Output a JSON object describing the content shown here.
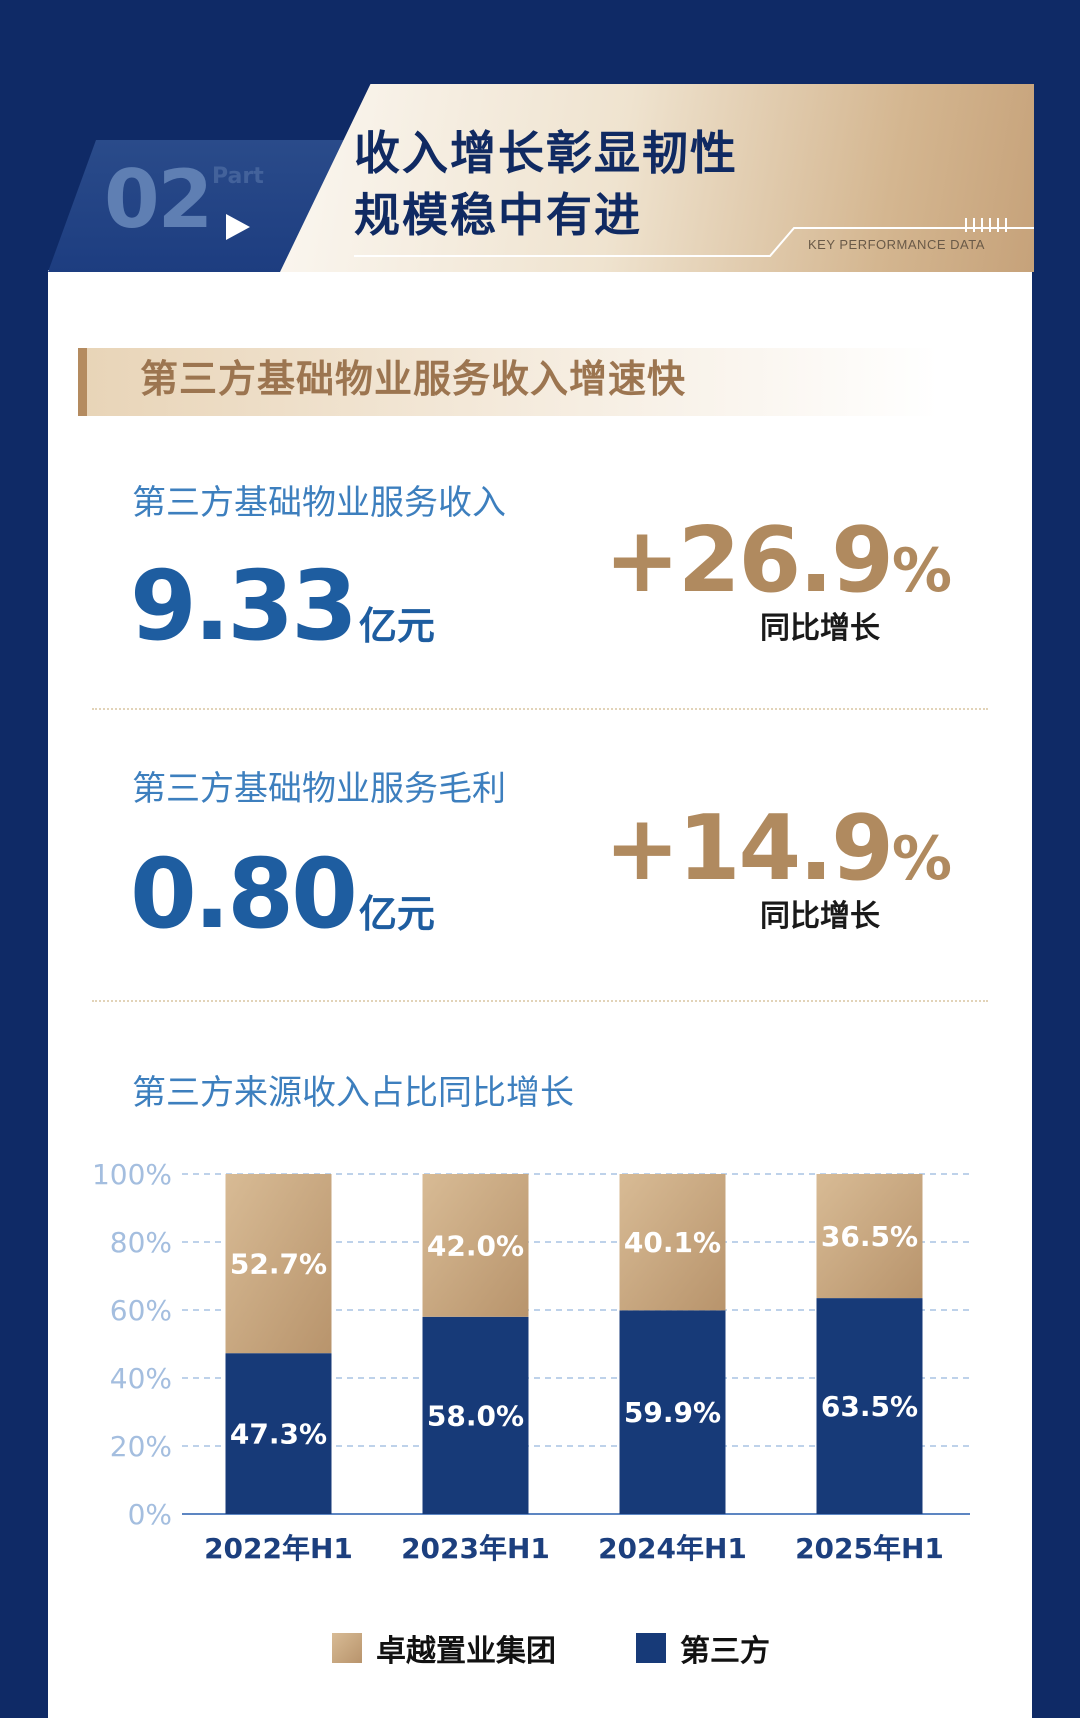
{
  "header": {
    "number": "02",
    "part": "Part",
    "title_line1": "收入增长彰显韧性",
    "title_line2": "规模稳中有进",
    "tag": "KEY PERFORMANCE DATA"
  },
  "section": {
    "title": "第三方基础物业服务收入增速快"
  },
  "metrics": [
    {
      "label": "第三方基础物业服务收入",
      "value": "9.33",
      "unit": "亿元",
      "growth": "+26.9",
      "growth_unit": "%",
      "growth_label": "同比增长"
    },
    {
      "label": "第三方基础物业服务毛利",
      "value": "0.80",
      "unit": "亿元",
      "growth": "+14.9",
      "growth_unit": "%",
      "growth_label": "同比增长"
    }
  ],
  "chart_data": {
    "type": "bar",
    "stacked": true,
    "title": "第三方来源收入占比同比增长",
    "categories": [
      "2022年H1",
      "2023年H1",
      "2024年H1",
      "2025年H1"
    ],
    "series": [
      {
        "name": "第三方",
        "values": [
          47.3,
          58.0,
          59.9,
          63.5
        ],
        "labels": [
          "47.3%",
          "58.0%",
          "59.9%",
          "63.5%"
        ]
      },
      {
        "name": "卓越置业集团",
        "values": [
          52.7,
          42.0,
          40.1,
          36.5
        ],
        "labels": [
          "52.7%",
          "42.0%",
          "40.1%",
          "36.5%"
        ]
      }
    ],
    "ylim": [
      0,
      100
    ],
    "yticks": [
      "0%",
      "20%",
      "40%",
      "60%",
      "80%",
      "100%"
    ],
    "grid": true,
    "legend": "bottom"
  },
  "colors": {
    "navy": "#173a78",
    "gold": "#c9a57e",
    "blue_text": "#3d7fbe"
  }
}
